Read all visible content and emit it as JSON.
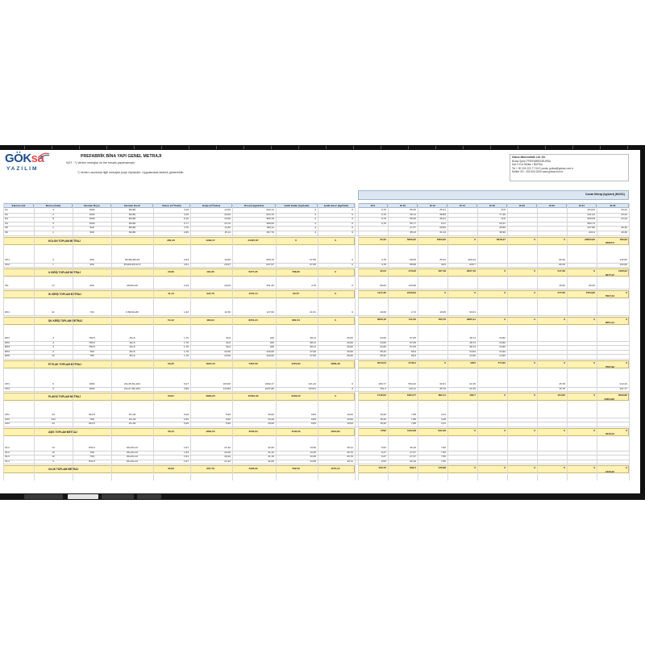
{
  "brand": {
    "logo_text_1": "GÖK",
    "logo_text_2": "sa",
    "logo_sub": "YAZILIM"
  },
  "title": "PREFABRİK BİNA YAPI GENEL METRAJI",
  "notes": [
    "NOT : *) Verilen metrajlar ön fire hesabı yapılmamıştır.",
    "*) Verilen uzunlukta ilgili metrajlar proje ölçüsüdür. Uygulamada farklılık gösterebilir."
  ],
  "company": {
    "lines": [
      "Gökse Mühendislik Ltd. Şti.",
      "Bursa Şube: PREFABRİK/BURSA",
      "Kat: 5 D:6  Nilüfer / BURSA",
      "Tel + 90 224 222 77 00   E-posta: goksa@goksa.com.tr",
      "Nilüfer VD : 404 000 0000          www.goksa.com.tr"
    ]
  },
  "headers": {
    "left": [
      "Eleman Adı",
      "Beton (Adet)",
      "Eleman Boyu",
      "Eleman Kesit",
      "Beton (m³/Adet)",
      "Kalıp (m²/Adet)",
      "Donatı (kg/Adet)",
      "Çelik Kalan (kg/Adet)",
      "Çelik Hasır (kg/Adet)"
    ],
    "right_title": "Donatı Metrajı (kg/Adet) (B420C)",
    "right": [
      "Ø 8",
      "Ø 10",
      "Ø 12",
      "Ø 14",
      "Ø 16",
      "Ø 20",
      "Ø 22",
      "Ø 24",
      "Ø 26"
    ]
  },
  "sections": [
    {
      "rows": [
        [
          "S1",
          "4",
          "1000",
          "60x60",
          "3,15",
          "14,00",
          "932,14",
          "4",
          "0"
        ],
        [
          "S2",
          "2",
          "1000",
          "60x60",
          "3,15",
          "20,00",
          "623,70",
          "4",
          "0"
        ],
        [
          "S3",
          "5",
          "1000",
          "60x60",
          "6,10",
          "24,00",
          "905,16",
          "4",
          "0"
        ],
        [
          "S4",
          "3",
          "1000",
          "60x60",
          "6,77",
          "23,70",
          "480,00",
          "4",
          "0"
        ],
        [
          "S5",
          "1",
          "926",
          "60x60",
          "3,70",
          "14,40",
          "390,11",
          "4",
          "0"
        ],
        [
          "S6",
          "1",
          "900",
          "60x60",
          "2,65",
          "15,11",
          "397,70",
          "4",
          "0"
        ]
      ],
      "right_rows": [
        [
          "0,79",
          "55,25",
          "25,41",
          "",
          "72,8",
          "",
          "",
          "404,03",
          "23,44"
        ],
        [
          "0,79",
          "36,11",
          "38,86",
          "",
          "77,49",
          "",
          "",
          "421,24",
          "23,44"
        ],
        [
          "0,79",
          "55,25",
          "35,41",
          "",
          "72,8",
          "",
          "",
          "926,05",
          "23,44"
        ],
        [
          "0,79",
          "55,77",
          "9,27",
          "",
          "20,41",
          "",
          "",
          "500,73",
          ""
        ],
        [
          "",
          "27,37",
          "29,60",
          "",
          "35,89",
          "",
          "",
          "227,86",
          "46,30"
        ],
        [
          "",
          "35,23",
          "31,24",
          "",
          "39,99",
          "",
          "",
          "224,4",
          "46,30"
        ]
      ],
      "total_label": "KOLON TOPLAM METRAJ",
      "totals": [
        "281,40",
        "1292,17",
        "21607,87",
        "0",
        "0"
      ],
      "right_totals": [
        "22,32",
        "5306,05",
        "1800,60",
        "0",
        "5918,47",
        "0",
        "0",
        "23000,60",
        "786,90"
      ],
      "grand": "35807,0"
    },
    {
      "rows": [
        [
          "UK1",
          "3",
          "600",
          "35x60x45x15",
          "2,63",
          "19,60",
          "605,70",
          "67,65",
          "0"
        ],
        [
          "UK2",
          "7",
          "600",
          "35x60x45x12,5",
          "3,61",
          "20,67",
          "637,97",
          "67,65",
          "0"
        ]
      ],
      "right_rows": [
        [
          "4,78",
          "56,65",
          "35,44",
          "260,24",
          "",
          "",
          "66,29",
          "",
          "132,66"
        ],
        [
          "4,78",
          "58,58",
          "40,5",
          "226,7",
          "",
          "",
          "66,29",
          "",
          "132,66"
        ]
      ],
      "total_label": "U KİRİŞ TOPLAM METRAJ",
      "totals": [
        "20,60",
        "184,35",
        "5077,25",
        "786,60",
        "0"
      ],
      "right_totals": [
        "42,04",
        "473,56",
        "467,18",
        "2027,19",
        "0",
        "0",
        "517,26",
        "0",
        "1106,02"
      ],
      "grand": "3077,27"
    },
    {
      "rows": [
        [
          "IK1",
          "17",
          "600",
          "40x60+30",
          "2,42",
          "20,00",
          "931,40",
          "4,75",
          "0"
        ]
      ],
      "right_rows": [
        [
          "66,00",
          "120,68",
          "",
          "",
          "",
          "",
          "16,50",
          "90,25",
          ""
        ]
      ],
      "total_label": "IK KİRİŞ TOPLAM METRAJ",
      "totals": [
        "41,14",
        "327,76",
        "1507,14",
        "80,75",
        "0"
      ],
      "right_totals": [
        "1117,36",
        "2126,62",
        "0",
        "0",
        "0",
        "0",
        "277,65",
        "1553,95",
        "0"
      ],
      "grand": "5507,34"
    },
    {
      "rows": [
        [
          "DK1",
          "41",
          "732",
          "0,50/30+80",
          "1,32",
          "11,50",
          "147,60",
          "21,51",
          "0"
        ]
      ],
      "right_rows": [
        [
          "16,66",
          "2,72",
          "19,05",
          "93,01",
          "",
          "",
          "",
          "",
          ""
        ]
      ],
      "total_label": "DK KİRİŞ TOPLAM METRAJ",
      "totals": [
        "54,12",
        "484,94",
        "6051,24",
        "881,54",
        "0"
      ],
      "right_totals": [
        "3006,10",
        "111,53",
        "780,76",
        "2985,41",
        "0",
        "0",
        "0",
        "0",
        "0"
      ],
      "grand": "6051,24"
    },
    {
      "rows": [
        [
          "DP1",
          "3",
          "760,5",
          "30+6",
          "1,76",
          "33,0",
          "226",
          "68,11",
          "26,60"
        ],
        [
          "DP2",
          "4",
          "760,5",
          "30+6",
          "1,76",
          "33,0",
          "226",
          "68,11",
          "26,60"
        ],
        [
          "DP3",
          "2",
          "760,5",
          "30+6",
          "1,76",
          "33,0",
          "226",
          "68,11",
          "26,60"
        ],
        [
          "DP4",
          "4",
          "780",
          "30+6",
          "1,76",
          "22,00",
          "220,00",
          "27,00",
          "26,60"
        ],
        [
          "DP5",
          "12",
          "780",
          "30+6",
          "1,76",
          "22,00",
          "220,00",
          "27,00",
          "26,60"
        ]
      ],
      "right_rows": [
        [
          "34,60",
          "67,05",
          "",
          "48,74",
          "24,82",
          "",
          "",
          "",
          ""
        ],
        [
          "34,60",
          "67,05",
          "",
          "48,74",
          "24,82",
          "",
          "",
          "",
          ""
        ],
        [
          "34,60",
          "67,05",
          "",
          "48,74",
          "24,82",
          "",
          "",
          "",
          ""
        ],
        [
          "35,32",
          "66,9",
          "",
          "24,00",
          "24,92",
          "",
          "",
          "",
          ""
        ],
        [
          "35,32",
          "66,9",
          "",
          "24,00",
          "24,92",
          "",
          "",
          "",
          ""
        ]
      ],
      "total_label": "Pİ PLAK TOPLAM METRAJ",
      "totals": [
        "56,25",
        "1837,44",
        "7367,50",
        "1351,84",
        "2880,48"
      ],
      "right_totals": [
        "2010,04",
        "2746,4",
        "0",
        "1872",
        "774,00",
        "0",
        "0",
        "0",
        "0"
      ],
      "grand": "7507,92"
    },
    {
      "rows": [
        [
          "CP1",
          "0",
          "1804",
          "20+45,30+204",
          "6,47",
          "103,00",
          "1092,17",
          "121,24",
          "0"
        ],
        [
          "CP2",
          "4",
          "1802",
          "20+47,30+204",
          "3,99",
          "113,84",
          "1037,86",
          "134,61",
          "0"
        ]
      ],
      "right_rows": [
        [
          "150,77",
          "594,42",
          "32,61",
          "22,15",
          "",
          "",
          "15,78",
          "",
          "214,44"
        ],
        [
          "151,3",
          "119,11",
          "35,79",
          "22,15",
          "",
          "",
          "15,78",
          "",
          "221,17"
        ]
      ],
      "total_label": "PLAKSİ TOPLAM METRAJ",
      "totals": [
        "63,61",
        "2894,20",
        "15301,33",
        "2233,20",
        "0"
      ],
      "right_totals": [
        "1718,02",
        "1984,77",
        "862,11",
        "182,7",
        "0",
        "0",
        "164,00",
        "0",
        "2636,80"
      ],
      "grand": "15304,96"
    },
    {
      "rows": [
        [
          "AK1",
          "24",
          "810,5",
          "15+30",
          "0,26",
          "5,90",
          "20,60",
          "0,84",
          "10,00"
        ],
        [
          "AK2",
          "134",
          "798",
          "15+30",
          "0,26",
          "5,62",
          "26,49",
          "0,84",
          "10,00"
        ],
        [
          "AK3",
          "24",
          "810,5",
          "15+30",
          "0,26",
          "5,90",
          "20,60",
          "0,84",
          "10,00"
        ]
      ],
      "right_rows": [
        [
          "15,20",
          "7,88",
          "3,41",
          "",
          "",
          "",
          "",
          "",
          ""
        ],
        [
          "15,32",
          "7,88",
          "3,28",
          "",
          "",
          "",
          "",
          "",
          ""
        ],
        [
          "15,20",
          "7,88",
          "3,41",
          "",
          "",
          "",
          "",
          "",
          ""
        ]
      ],
      "total_label": "AŞIK TOPLAM METRAJ",
      "totals": [
        "36,44",
        "1881,52",
        "4040,04",
        "1146,56",
        "1824,84"
      ],
      "right_totals": [
        "2790",
        "1102,38",
        "631,08",
        "0",
        "0",
        "0",
        "0",
        "0",
        "0"
      ],
      "grand": "4040,04"
    },
    {
      "rows": [
        [
          "OL1",
          "13",
          "831,5",
          "90+20+12",
          "1,67",
          "21,42",
          "42,20",
          "13,66",
          "26,11"
        ],
        [
          "OL2",
          "12",
          "798",
          "90+20+12",
          "1,63",
          "20,20",
          "41,10",
          "13,45",
          "26,70"
        ],
        [
          "OL3",
          "12",
          "798",
          "90+20+12",
          "1,61",
          "20,20",
          "41,10",
          "13,45",
          "26,70"
        ],
        [
          "OL4",
          "4",
          "831,5",
          "90+20+12",
          "1,67",
          "21,42",
          "42,20",
          "13,66",
          "26,11"
        ]
      ],
      "right_rows": [
        [
          "6,53",
          "26,10",
          "7,50",
          "",
          "",
          "",
          "",
          "",
          ""
        ],
        [
          "6,27",
          "27,37",
          "7,50",
          "",
          "",
          "",
          "",
          "",
          ""
        ],
        [
          "6,27",
          "27,37",
          "7,50",
          "",
          "",
          "",
          "",
          "",
          ""
        ],
        [
          "6,53",
          "26,10",
          "7,50",
          "",
          "",
          "",
          "",
          "",
          ""
        ]
      ],
      "total_label": "OLUK TOPLAM METRAJ",
      "totals": [
        "32,92",
        "967,79",
        "1326,32",
        "402,59",
        "1157,12"
      ],
      "right_totals": [
        "193,73",
        "992,4",
        "140,98",
        "0",
        "0",
        "0",
        "0",
        "0",
        "0"
      ],
      "grand": "1326,32"
    }
  ]
}
